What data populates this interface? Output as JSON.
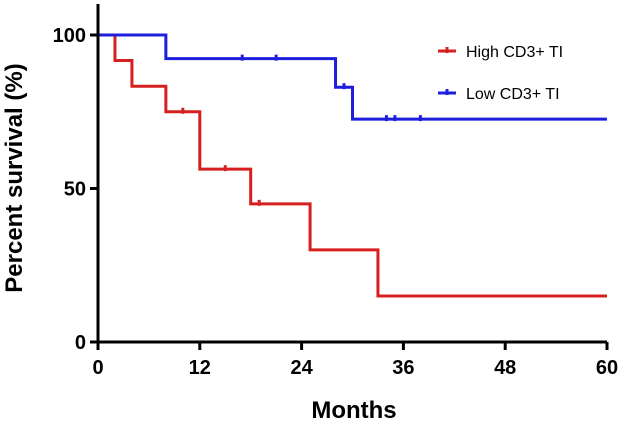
{
  "chart_data": {
    "type": "line",
    "subtype": "kaplan-meier",
    "title": "",
    "xlabel": "Months",
    "ylabel": "Percent survival (%)",
    "xlim": [
      0,
      60
    ],
    "ylim": [
      0,
      100
    ],
    "xticks": [
      "0",
      "12",
      "24",
      "36",
      "48",
      "60"
    ],
    "yticks": [
      "0",
      "50",
      "100"
    ],
    "legend_position": "top-right",
    "series": [
      {
        "name": "High CD3+ TI",
        "color": "#d62020",
        "steps": [
          [
            0,
            100
          ],
          [
            2,
            91.7
          ],
          [
            4,
            83.3
          ],
          [
            8,
            75
          ],
          [
            12,
            56.3
          ],
          [
            18,
            45
          ],
          [
            25,
            30
          ],
          [
            33,
            15
          ],
          [
            60,
            15
          ]
        ],
        "censored": [
          [
            10,
            75
          ],
          [
            15,
            56.3
          ],
          [
            19,
            45
          ]
        ]
      },
      {
        "name": "Low CD3+ TI",
        "color": "#1f1fdb",
        "steps": [
          [
            0,
            100
          ],
          [
            8,
            92.3
          ],
          [
            28,
            83
          ],
          [
            30,
            72.6
          ],
          [
            60,
            72.6
          ]
        ],
        "censored": [
          [
            17,
            92.3
          ],
          [
            21,
            92.3
          ],
          [
            29,
            83
          ],
          [
            34,
            72.6
          ],
          [
            35,
            72.6
          ],
          [
            38,
            72.6
          ]
        ]
      }
    ]
  }
}
